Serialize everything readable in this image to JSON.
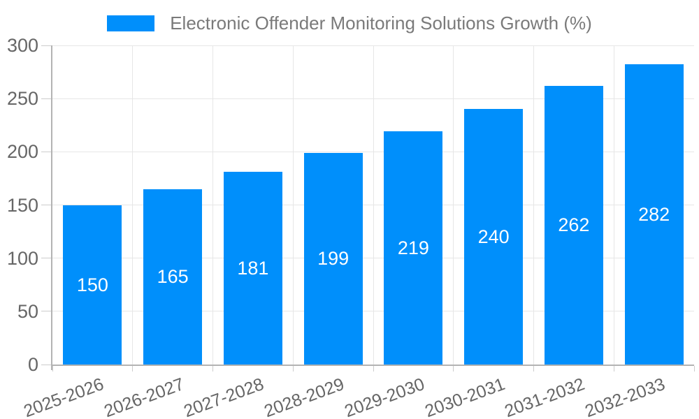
{
  "chart_data": {
    "type": "bar",
    "title": "Electronic Offender Monitoring Solutions Growth (%)",
    "categories": [
      "2025-2026",
      "2026-2027",
      "2027-2028",
      "2028-2029",
      "2029-2030",
      "2030-2031",
      "2031-2032",
      "2032-2033"
    ],
    "values": [
      150,
      165,
      181,
      199,
      219,
      240,
      262,
      282
    ],
    "xlabel": "",
    "ylabel": "",
    "ylim": [
      0,
      300
    ],
    "yticks": [
      0,
      50,
      100,
      150,
      200,
      250,
      300
    ],
    "grid": true,
    "legend_position": "top",
    "value_labels": "inside-center",
    "colors": {
      "bar": "#008FFB",
      "value_label": "#ffffff",
      "axis_label": "#666666",
      "legend_text": "#7a7a7a",
      "gridline": "#e6e6e6",
      "axis_line": "#b3b3b3",
      "tick": "#cccccc",
      "background": "#ffffff"
    }
  }
}
